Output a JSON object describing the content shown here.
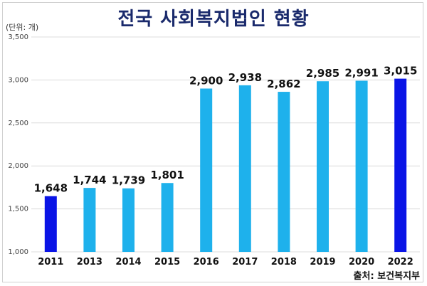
{
  "header": {
    "title": "전국 사회복지법인 현황",
    "unit": "(단위: 개)",
    "source": "출처: 보건복지부"
  },
  "chart_data": {
    "type": "bar",
    "title": "전국 사회복지법인 현황",
    "xlabel": "",
    "ylabel": "",
    "categories": [
      "2011",
      "2013",
      "2014",
      "2015",
      "2016",
      "2017",
      "2018",
      "2019",
      "2020",
      "2022"
    ],
    "values": [
      1648,
      1744,
      1739,
      1801,
      2900,
      2938,
      2862,
      2985,
      2991,
      3015
    ],
    "value_labels": [
      "1,648",
      "1,744",
      "1,739",
      "1,801",
      "2,900",
      "2,938",
      "2,862",
      "2,985",
      "2,991",
      "3,015"
    ],
    "ylim": [
      1000,
      3500
    ],
    "yticks": [
      1000,
      1500,
      2000,
      2500,
      3000,
      3500
    ],
    "ytick_labels": [
      "1,000",
      "1,500",
      "2,000",
      "2,500",
      "3,000",
      "3,500"
    ],
    "grid": true,
    "legend": "none",
    "colors": {
      "default_bar": "#1eb1ec",
      "highlight_bar": "#0a14e6",
      "default_label": "#111111",
      "first_label": "#1a24b8",
      "last_label": "#e01e1e",
      "grid": "#dcdcdc"
    },
    "highlight_indices": [
      0,
      9
    ]
  }
}
